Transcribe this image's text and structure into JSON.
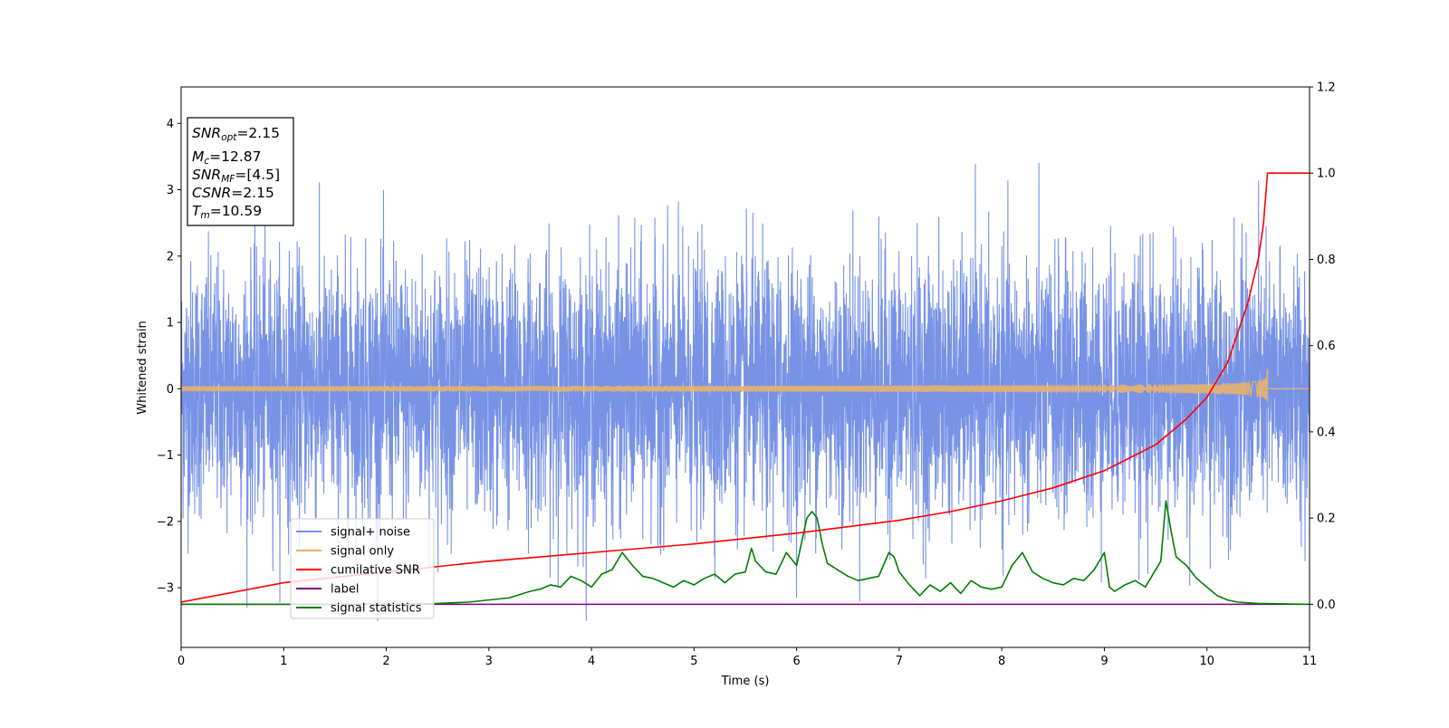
{
  "chart_data": {
    "type": "line",
    "xlabel": "Time (s)",
    "ylabel": "Whitened strain",
    "xlim": [
      0,
      11
    ],
    "ylim": [
      -3.9,
      4.55
    ],
    "y2lim": [
      -0.1,
      1.2
    ],
    "x_ticks": [
      "0",
      "1",
      "2",
      "3",
      "4",
      "5",
      "6",
      "7",
      "8",
      "9",
      "10",
      "11"
    ],
    "y_ticks": [
      "−3",
      "−2",
      "−1",
      "0",
      "1",
      "2",
      "3",
      "4"
    ],
    "y2_ticks": [
      "0.0",
      "0.2",
      "0.4",
      "0.6",
      "0.8",
      "1.0",
      "1.2"
    ],
    "legend_position": "lower-left",
    "annotation": {
      "snr_opt_base": "SNR",
      "snr_opt_sub": "opt",
      "snr_opt_val": "=2.15",
      "mc_base": "M",
      "mc_sub": "c",
      "mc_val": "=12.87",
      "snr_mf_base": "SNR",
      "snr_mf_sub": "MF",
      "snr_mf_val": "=[4.5]",
      "csnr_base": "CSNR",
      "csnr_val": "=2.15",
      "tm_base": "T",
      "tm_sub": "m",
      "tm_val": "=10.59"
    },
    "series": [
      {
        "name": "signal+ noise",
        "color": "#7893e6",
        "axis": "left",
        "style": "dense gaussian noise, sigma ~0.95, spikes up to ~4.2 and down to ~-3.5",
        "duration": 11
      },
      {
        "name": "signal only",
        "color": "#e8b36e",
        "axis": "left",
        "style": "chirp with growing amplitude, merger at t=10.59, peak amplitude ~0.3",
        "merger_time": 10.59,
        "peak_amplitude": 0.3
      },
      {
        "name": "cumilative SNR",
        "color": "#ff0000",
        "axis": "right",
        "x": [
          0,
          1,
          2,
          3,
          4,
          5,
          6,
          6.5,
          7,
          7.5,
          8,
          8.5,
          9,
          9.5,
          9.8,
          10,
          10.2,
          10.4,
          10.5,
          10.55,
          10.59,
          11
        ],
        "y": [
          0.005,
          0.05,
          0.075,
          0.1,
          0.12,
          0.14,
          0.165,
          0.18,
          0.195,
          0.215,
          0.24,
          0.27,
          0.31,
          0.37,
          0.43,
          0.48,
          0.56,
          0.7,
          0.8,
          0.88,
          1.0,
          1.0
        ]
      },
      {
        "name": "label",
        "color": "#800080",
        "axis": "right",
        "x": [
          0,
          11
        ],
        "y": [
          0,
          0
        ]
      },
      {
        "name": "signal statistics",
        "color": "#008000",
        "axis": "right",
        "x": [
          0,
          1,
          2,
          2.5,
          2.8,
          3.0,
          3.2,
          3.4,
          3.5,
          3.6,
          3.7,
          3.8,
          3.9,
          4.0,
          4.1,
          4.2,
          4.3,
          4.4,
          4.5,
          4.6,
          4.7,
          4.8,
          4.9,
          5.0,
          5.1,
          5.2,
          5.3,
          5.4,
          5.5,
          5.56,
          5.6,
          5.7,
          5.8,
          5.9,
          6.0,
          6.1,
          6.15,
          6.2,
          6.25,
          6.3,
          6.4,
          6.5,
          6.6,
          6.7,
          6.8,
          6.9,
          6.95,
          7.0,
          7.1,
          7.2,
          7.3,
          7.4,
          7.5,
          7.6,
          7.7,
          7.8,
          7.9,
          8.0,
          8.1,
          8.2,
          8.3,
          8.4,
          8.5,
          8.6,
          8.7,
          8.8,
          8.9,
          9.0,
          9.05,
          9.1,
          9.2,
          9.3,
          9.4,
          9.5,
          9.55,
          9.6,
          9.65,
          9.7,
          9.8,
          9.9,
          10.0,
          10.1,
          10.2,
          10.3,
          10.5,
          11
        ],
        "y": [
          0.0,
          0.0,
          0.0,
          0.002,
          0.005,
          0.01,
          0.015,
          0.03,
          0.035,
          0.045,
          0.04,
          0.065,
          0.055,
          0.04,
          0.07,
          0.08,
          0.12,
          0.09,
          0.065,
          0.06,
          0.05,
          0.04,
          0.055,
          0.045,
          0.06,
          0.07,
          0.05,
          0.07,
          0.075,
          0.13,
          0.1,
          0.075,
          0.07,
          0.12,
          0.09,
          0.2,
          0.215,
          0.2,
          0.14,
          0.095,
          0.08,
          0.065,
          0.055,
          0.06,
          0.065,
          0.12,
          0.11,
          0.075,
          0.045,
          0.02,
          0.045,
          0.03,
          0.05,
          0.025,
          0.055,
          0.04,
          0.035,
          0.04,
          0.09,
          0.12,
          0.075,
          0.06,
          0.05,
          0.045,
          0.06,
          0.055,
          0.08,
          0.12,
          0.04,
          0.03,
          0.045,
          0.055,
          0.04,
          0.08,
          0.1,
          0.24,
          0.17,
          0.11,
          0.09,
          0.06,
          0.04,
          0.02,
          0.01,
          0.005,
          0.002,
          0.0
        ]
      }
    ]
  }
}
